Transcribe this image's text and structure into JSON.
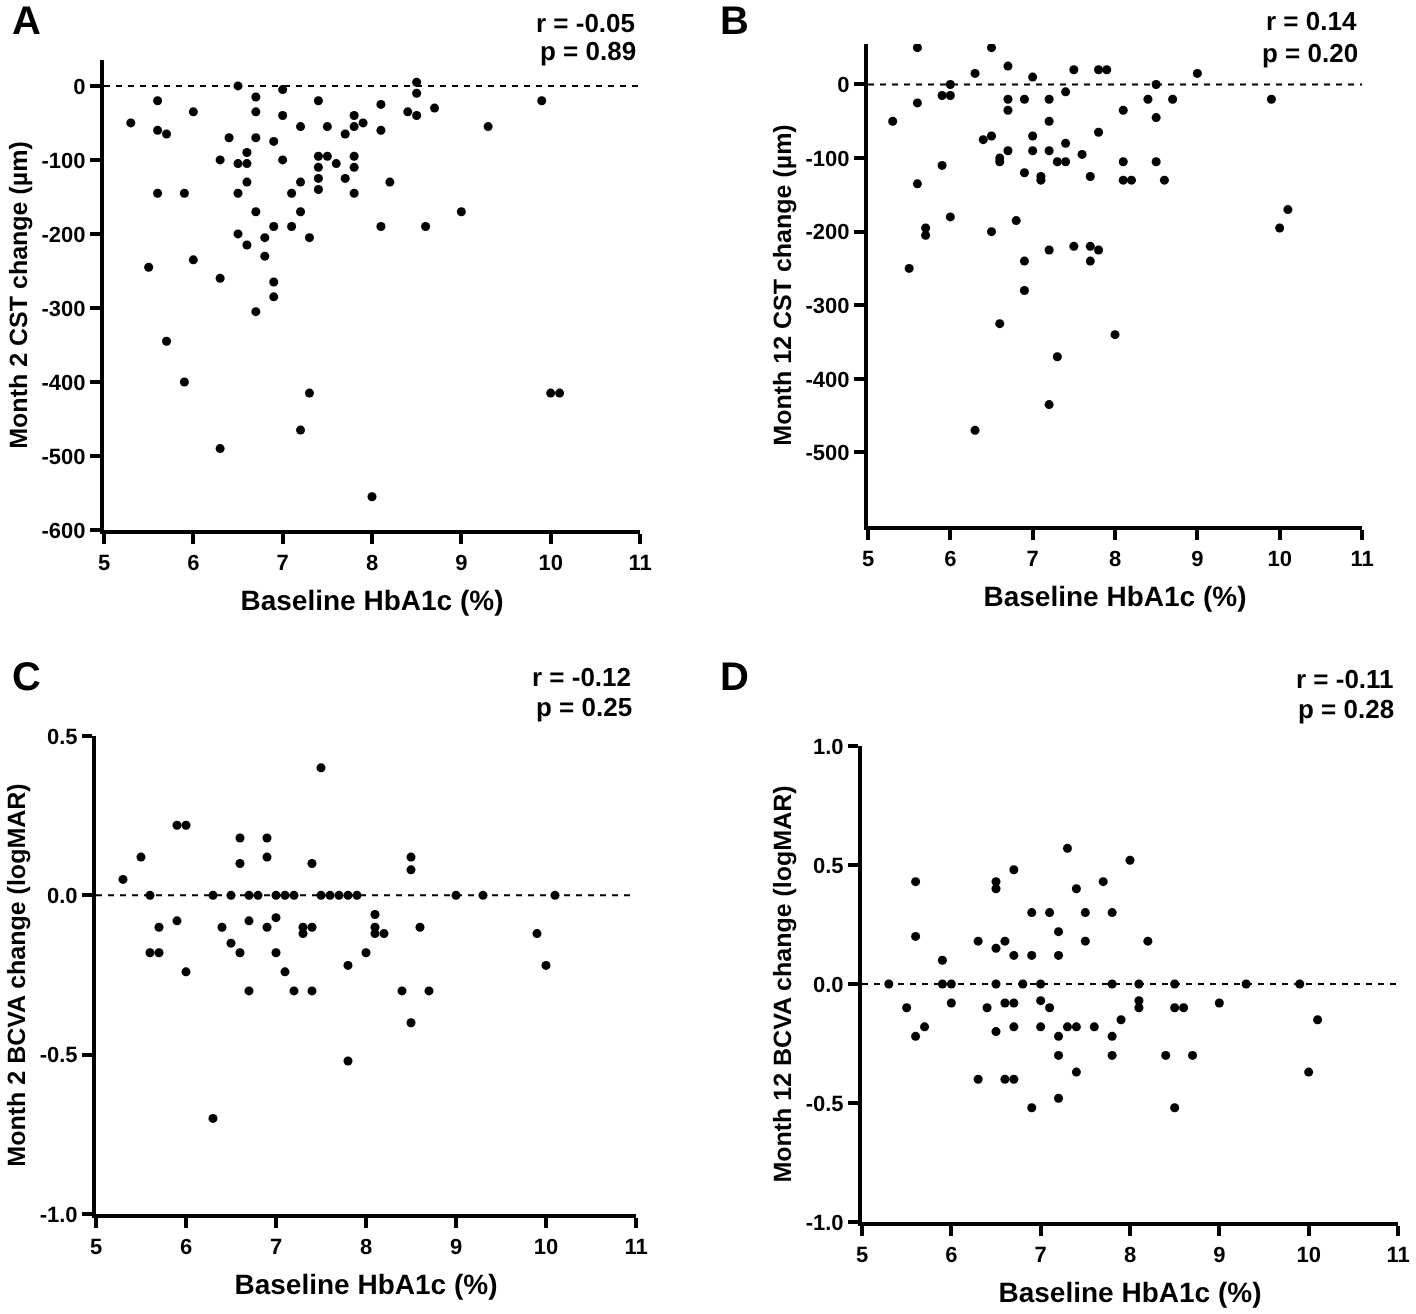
{
  "chart_data": [
    {
      "type": "scatter",
      "title": "A",
      "xlabel": "Baseline HbA1c (%)",
      "ylabel": "Month 2 CST change (µm)",
      "annotations": [
        "r = -0.05",
        "p = 0.89"
      ],
      "xlim": [
        5,
        11
      ],
      "xticks": [
        5,
        6,
        7,
        8,
        9,
        10,
        11
      ],
      "ylim": [
        -600,
        35
      ],
      "yticks": [
        0,
        -100,
        -200,
        -300,
        -400,
        -500,
        -600
      ],
      "grid": false,
      "marker": "circle",
      "ref_lines": [
        {
          "axis": "y",
          "value": 0,
          "line_style": "dotted",
          "color": "#000000"
        }
      ],
      "series": [
        {
          "color": "#000000",
          "x": [
            5.3,
            5.6,
            5.6,
            5.7,
            6.0,
            6.5,
            6.7,
            6.7,
            7.0,
            7.0,
            7.4,
            8.1,
            8.5,
            8.5,
            8.4,
            8.5,
            8.7,
            8.1,
            7.9,
            7.8,
            7.8,
            7.7,
            7.5,
            7.2,
            9.3,
            9.9,
            6.4,
            6.7,
            6.9,
            6.3,
            6.5,
            6.6,
            6.6,
            7.0,
            7.4,
            7.4,
            7.5,
            7.6,
            7.8,
            7.8,
            6.6,
            7.4,
            7.4,
            7.7,
            8.2,
            7.2,
            5.6,
            5.9,
            6.5,
            7.1,
            7.8,
            6.7,
            7.2,
            9.0,
            6.9,
            7.1,
            8.1,
            8.6,
            6.5,
            6.8,
            7.3,
            6.6,
            6.8,
            5.5,
            6.0,
            6.3,
            6.9,
            6.9,
            6.7,
            5.7,
            5.9,
            7.3,
            10.0,
            10.1,
            7.2,
            6.3,
            8.0
          ],
          "values": [
            -50,
            -20,
            -60,
            -65,
            -35,
            0,
            -15,
            -35,
            -5,
            -40,
            -20,
            -25,
            5,
            -10,
            -35,
            -40,
            -30,
            -60,
            -50,
            -40,
            -55,
            -65,
            -55,
            -55,
            -55,
            -20,
            -70,
            -70,
            -75,
            -100,
            -105,
            -90,
            -105,
            -100,
            -95,
            -110,
            -95,
            -105,
            -95,
            -110,
            -130,
            -125,
            -140,
            -125,
            -130,
            -130,
            -145,
            -145,
            -145,
            -145,
            -145,
            -170,
            -170,
            -170,
            -190,
            -190,
            -190,
            -190,
            -200,
            -205,
            -205,
            -215,
            -230,
            -245,
            -235,
            -260,
            -265,
            -285,
            -305,
            -345,
            -400,
            -415,
            -415,
            -415,
            -465,
            -490,
            -555
          ]
        }
      ]
    },
    {
      "type": "scatter",
      "title": "B",
      "xlabel": "Baseline HbA1c (%)",
      "ylabel": "Month 12 CST change (µm)",
      "annotations": [
        "r = 0.14",
        "p = 0.20"
      ],
      "xlim": [
        5,
        11
      ],
      "xticks": [
        5,
        6,
        7,
        8,
        9,
        10,
        11
      ],
      "ylim": [
        -600,
        55
      ],
      "yticks": [
        0,
        -100,
        -200,
        -300,
        -400,
        -500
      ],
      "grid": false,
      "marker": "circle",
      "ref_lines": [
        {
          "axis": "y",
          "value": 0,
          "line_style": "dotted",
          "color": "#000000"
        }
      ],
      "series": [
        {
          "color": "#000000",
          "x": [
            5.6,
            6.5,
            6.7,
            6.3,
            7.0,
            7.5,
            7.8,
            7.9,
            9.0,
            6.0,
            8.5,
            7.4,
            5.3,
            5.6,
            5.9,
            6.0,
            6.7,
            6.7,
            6.9,
            7.2,
            7.2,
            8.4,
            8.7,
            8.1,
            8.5,
            9.9,
            6.4,
            6.5,
            7.0,
            7.8,
            7.4,
            6.7,
            7.0,
            7.2,
            7.6,
            6.6,
            6.6,
            7.3,
            7.4,
            8.1,
            8.5,
            5.9,
            6.9,
            7.1,
            7.1,
            7.7,
            8.1,
            8.2,
            8.6,
            5.6,
            6.0,
            5.7,
            5.7,
            6.8,
            6.5,
            10.0,
            10.1,
            7.2,
            7.5,
            7.7,
            7.8,
            7.7,
            6.9,
            6.9,
            5.5,
            6.6,
            8.0,
            7.3,
            7.2,
            6.3
          ],
          "values": [
            50,
            50,
            25,
            15,
            10,
            20,
            20,
            20,
            15,
            0,
            0,
            -10,
            -50,
            -25,
            -15,
            -15,
            -20,
            -35,
            -20,
            -20,
            -50,
            -20,
            -20,
            -35,
            -45,
            -20,
            -75,
            -70,
            -70,
            -65,
            -80,
            -90,
            -90,
            -90,
            -95,
            -100,
            -105,
            -105,
            -105,
            -105,
            -105,
            -110,
            -120,
            -125,
            -130,
            -125,
            -130,
            -130,
            -130,
            -135,
            -180,
            -195,
            -205,
            -185,
            -200,
            -195,
            -170,
            -225,
            -220,
            -220,
            -225,
            -240,
            -240,
            -280,
            -250,
            -325,
            -340,
            -370,
            -435,
            -470
          ]
        }
      ]
    },
    {
      "type": "scatter",
      "title": "C",
      "xlabel": "Baseline HbA1c (%)",
      "ylabel": "Month 2 BCVA change (logMAR)",
      "annotations": [
        "r = -0.12",
        "p = 0.25"
      ],
      "xlim": [
        5,
        11
      ],
      "xticks": [
        5,
        6,
        7,
        8,
        9,
        10,
        11
      ],
      "ylim": [
        -1,
        0.5
      ],
      "yticks": [
        {
          "value": 0.5,
          "label": "0.5"
        },
        {
          "value": 0,
          "label": "0.0"
        },
        {
          "value": -0.5,
          "label": "-0.5"
        },
        {
          "value": -1,
          "label": "-1.0"
        }
      ],
      "grid": false,
      "marker": "circle",
      "ref_lines": [
        {
          "axis": "y",
          "value": 0,
          "line_style": "dotted",
          "color": "#000000"
        }
      ],
      "series": [
        {
          "color": "#000000",
          "x": [
            5.3,
            5.5,
            5.9,
            6.0,
            6.6,
            6.9,
            6.6,
            6.9,
            7.4,
            7.5,
            8.5,
            8.5,
            5.6,
            6.3,
            6.5,
            6.7,
            6.8,
            7.0,
            7.1,
            7.2,
            7.5,
            7.6,
            7.7,
            7.8,
            7.9,
            9.0,
            9.3,
            10.1,
            5.9,
            5.7,
            5.6,
            5.7,
            6.0,
            6.4,
            6.5,
            6.6,
            6.7,
            6.9,
            7.0,
            7.0,
            7.1,
            6.7,
            7.2,
            7.3,
            7.3,
            7.4,
            7.4,
            7.8,
            8.0,
            8.1,
            8.1,
            8.1,
            8.2,
            8.6,
            8.4,
            8.7,
            8.5,
            7.8,
            6.3,
            9.9,
            10.0
          ],
          "values": [
            0.05,
            0.12,
            0.22,
            0.22,
            0.18,
            0.18,
            0.1,
            0.12,
            0.1,
            0.4,
            0.12,
            0.08,
            0,
            0,
            0,
            0,
            0,
            0,
            0,
            0,
            0,
            0,
            0,
            0,
            0,
            0,
            0,
            0,
            -0.08,
            -0.1,
            -0.18,
            -0.18,
            -0.24,
            -0.1,
            -0.15,
            -0.18,
            -0.08,
            -0.1,
            -0.07,
            -0.18,
            -0.24,
            -0.3,
            -0.3,
            -0.1,
            -0.12,
            -0.1,
            -0.3,
            -0.22,
            -0.18,
            -0.06,
            -0.1,
            -0.12,
            -0.12,
            -0.1,
            -0.3,
            -0.3,
            -0.4,
            -0.52,
            -0.7,
            -0.12,
            -0.22
          ]
        }
      ]
    },
    {
      "type": "scatter",
      "title": "D",
      "xlabel": "Baseline HbA1c (%)",
      "ylabel": "Month 12 BCVA change (logMAR)",
      "annotations": [
        "r = -0.11",
        "p = 0.28"
      ],
      "xlim": [
        5,
        11
      ],
      "xticks": [
        5,
        6,
        7,
        8,
        9,
        10,
        11
      ],
      "ylim": [
        -1,
        1
      ],
      "yticks": [
        {
          "value": 1,
          "label": "1.0"
        },
        {
          "value": 0.5,
          "label": "0.5"
        },
        {
          "value": 0,
          "label": "0.0"
        },
        {
          "value": -0.5,
          "label": "-0.5"
        },
        {
          "value": -1,
          "label": "-1.0"
        }
      ],
      "grid": false,
      "marker": "circle",
      "ref_lines": [
        {
          "axis": "y",
          "value": 0,
          "line_style": "dotted",
          "color": "#000000"
        }
      ],
      "series": [
        {
          "color": "#000000",
          "x": [
            5.3,
            5.6,
            5.6,
            5.5,
            5.6,
            5.7,
            5.9,
            5.9,
            6.0,
            6.0,
            6.3,
            6.3,
            6.4,
            6.5,
            6.5,
            6.5,
            6.5,
            6.5,
            6.6,
            6.6,
            6.6,
            6.7,
            6.7,
            6.7,
            6.7,
            6.7,
            6.8,
            6.9,
            6.9,
            6.9,
            7.0,
            7.0,
            7.0,
            7.1,
            7.1,
            7.2,
            7.2,
            7.2,
            7.2,
            7.2,
            7.3,
            7.3,
            7.4,
            7.4,
            7.4,
            7.5,
            7.5,
            7.6,
            7.7,
            7.8,
            7.8,
            7.8,
            7.8,
            7.9,
            8.0,
            8.1,
            8.1,
            8.1,
            8.2,
            8.4,
            8.5,
            8.5,
            8.5,
            8.6,
            8.7,
            9.0,
            9.3,
            9.9,
            10.0,
            10.1
          ],
          "values": [
            0,
            0.43,
            0.2,
            -0.1,
            -0.22,
            -0.18,
            0.1,
            0,
            0,
            -0.08,
            0.18,
            -0.4,
            -0.1,
            0.43,
            0.4,
            0.15,
            0,
            -0.2,
            0.18,
            -0.08,
            -0.4,
            0.48,
            0.12,
            -0.08,
            -0.18,
            -0.4,
            0,
            0.3,
            0.12,
            -0.52,
            0,
            -0.07,
            -0.18,
            0.3,
            -0.1,
            0.22,
            0.12,
            -0.22,
            -0.3,
            -0.48,
            0.57,
            -0.18,
            0.4,
            -0.18,
            -0.37,
            0.3,
            0.18,
            -0.18,
            0.43,
            0.3,
            0,
            -0.22,
            -0.3,
            -0.15,
            0.52,
            0,
            -0.07,
            -0.1,
            0.18,
            -0.3,
            0,
            -0.1,
            -0.52,
            -0.1,
            -0.3,
            -0.08,
            0,
            0,
            -0.37,
            -0.15
          ]
        }
      ]
    }
  ]
}
